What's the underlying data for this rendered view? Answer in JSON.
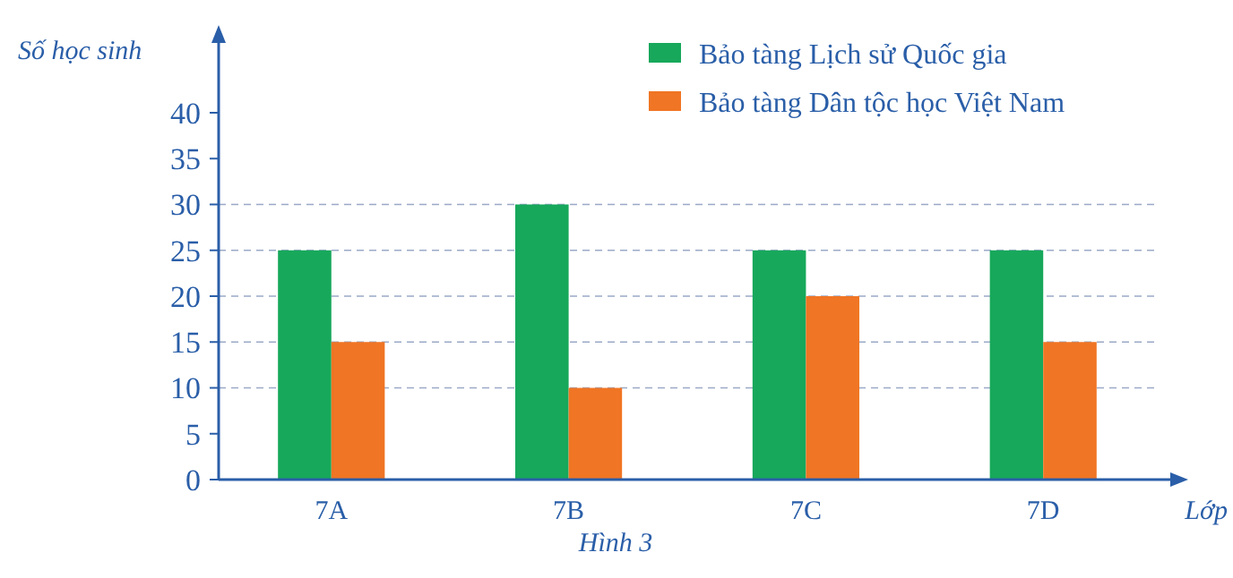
{
  "chart_data": {
    "type": "bar",
    "ylabel": "Số học sinh",
    "xlabel": "Lớp",
    "annotations": [
      "Hình 3"
    ],
    "categories": [
      "7A",
      "7B",
      "7C",
      "7D"
    ],
    "series": [
      {
        "name": "Bảo tàng Lịch sử Quốc gia",
        "color": "#17a85b",
        "values": [
          25,
          30,
          25,
          25
        ]
      },
      {
        "name": "Bảo tàng Dân tộc học Việt Nam",
        "color": "#f07524",
        "values": [
          15,
          10,
          20,
          15
        ]
      }
    ],
    "ylim": [
      0,
      48
    ],
    "yticks": [
      0,
      5,
      10,
      15,
      20,
      25,
      30,
      35,
      40
    ],
    "ref_lines": [
      {
        "axis": "y",
        "value": 10,
        "color": "#9aa9c8",
        "line_style": "dashed"
      },
      {
        "axis": "y",
        "value": 15,
        "color": "#9aa9c8",
        "line_style": "dashed"
      },
      {
        "axis": "y",
        "value": 20,
        "color": "#9aa9c8",
        "line_style": "dashed"
      },
      {
        "axis": "y",
        "value": 25,
        "color": "#9aa9c8",
        "line_style": "dashed"
      },
      {
        "axis": "y",
        "value": 30,
        "color": "#9aa9c8",
        "line_style": "dashed"
      }
    ],
    "legend": "top right"
  }
}
